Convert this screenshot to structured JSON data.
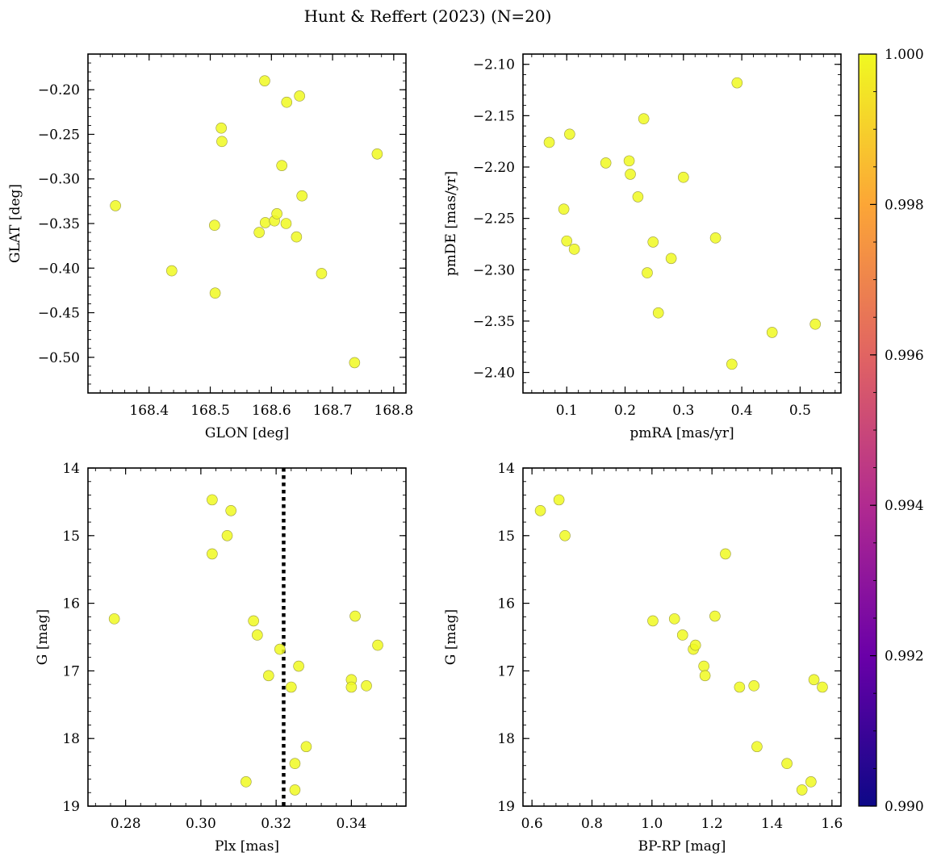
{
  "figure": {
    "title": "Hunt & Reffert (2023) (N=20)"
  },
  "colors": {
    "point": "#f0f921",
    "point_edge": "#9a9a40",
    "colorbar_stops": [
      "#0d0887",
      "#6a00a8",
      "#b12a90",
      "#e16462",
      "#fca636",
      "#f0f921"
    ]
  },
  "colorbar": {
    "min": 0.99,
    "max": 1.0,
    "ticks": [
      0.99,
      0.992,
      0.994,
      0.996,
      0.998,
      1.0
    ],
    "tick_labels": [
      "0.990",
      "0.992",
      "0.994",
      "0.996",
      "0.998",
      "1.000"
    ]
  },
  "chart_data": [
    {
      "type": "scatter",
      "id": "glon-glat",
      "title": "",
      "xlabel": "GLON [deg]",
      "ylabel": "GLAT [deg]",
      "xlim": [
        168.3,
        168.82
      ],
      "ylim": [
        -0.54,
        -0.16
      ],
      "y_inverted": false,
      "xticks": [
        168.4,
        168.5,
        168.6,
        168.7,
        168.8
      ],
      "xtick_labels": [
        "168.4",
        "168.5",
        "168.6",
        "168.7",
        "168.8"
      ],
      "xminor": 0.02,
      "yticks": [
        -0.5,
        -0.45,
        -0.4,
        -0.35,
        -0.3,
        -0.25,
        -0.2
      ],
      "ytick_labels": [
        "−0.50",
        "−0.45",
        "−0.40",
        "−0.35",
        "−0.30",
        "−0.25",
        "−0.20"
      ],
      "yminor": 0.01,
      "x": [
        168.345,
        168.437,
        168.507,
        168.508,
        168.518,
        168.519,
        168.58,
        168.59,
        168.589,
        168.605,
        168.609,
        168.617,
        168.624,
        168.625,
        168.641,
        168.646,
        168.65,
        168.682,
        168.736,
        168.773
      ],
      "y": [
        -0.33,
        -0.403,
        -0.352,
        -0.428,
        -0.243,
        -0.258,
        -0.36,
        -0.349,
        -0.19,
        -0.347,
        -0.339,
        -0.285,
        -0.35,
        -0.214,
        -0.365,
        -0.207,
        -0.319,
        -0.406,
        -0.506,
        -0.272
      ]
    },
    {
      "type": "scatter",
      "id": "pmra-pmde",
      "title": "",
      "xlabel": "pmRA [mas/yr]",
      "ylabel": "pmDE [mas/yr]",
      "xlim": [
        0.025,
        0.57
      ],
      "ylim": [
        -2.42,
        -2.09
      ],
      "y_inverted": false,
      "xticks": [
        0.1,
        0.2,
        0.3,
        0.4,
        0.5
      ],
      "xtick_labels": [
        "0.1",
        "0.2",
        "0.3",
        "0.4",
        "0.5"
      ],
      "xminor": 0.02,
      "yticks": [
        -2.4,
        -2.35,
        -2.3,
        -2.25,
        -2.2,
        -2.15,
        -2.1
      ],
      "ytick_labels": [
        "−2.40",
        "−2.35",
        "−2.30",
        "−2.25",
        "−2.20",
        "−2.15",
        "−2.10"
      ],
      "yminor": 0.01,
      "x": [
        0.07,
        0.095,
        0.1,
        0.105,
        0.113,
        0.167,
        0.207,
        0.209,
        0.222,
        0.232,
        0.238,
        0.248,
        0.257,
        0.279,
        0.3,
        0.355,
        0.383,
        0.392,
        0.452,
        0.526
      ],
      "y": [
        -2.176,
        -2.241,
        -2.272,
        -2.168,
        -2.28,
        -2.196,
        -2.194,
        -2.207,
        -2.229,
        -2.153,
        -2.303,
        -2.273,
        -2.342,
        -2.289,
        -2.21,
        -2.269,
        -2.392,
        -2.118,
        -2.361,
        -2.353
      ]
    },
    {
      "type": "scatter",
      "id": "plx-g",
      "title": "",
      "xlabel": "Plx [mas]",
      "ylabel": "G [mag]",
      "xlim": [
        0.27,
        0.3545
      ],
      "ylim": [
        19.0,
        14.0
      ],
      "y_inverted": true,
      "xticks": [
        0.28,
        0.3,
        0.32,
        0.34
      ],
      "xtick_labels": [
        "0.28",
        "0.30",
        "0.32",
        "0.34"
      ],
      "xminor": 0.004,
      "yticks": [
        14,
        15,
        16,
        17,
        18,
        19
      ],
      "ytick_labels": [
        "14",
        "15",
        "16",
        "17",
        "18",
        "19"
      ],
      "yminor": 0.2,
      "vline": 0.322,
      "x": [
        0.277,
        0.303,
        0.303,
        0.307,
        0.308,
        0.312,
        0.314,
        0.315,
        0.318,
        0.321,
        0.324,
        0.325,
        0.325,
        0.326,
        0.328,
        0.34,
        0.34,
        0.341,
        0.344,
        0.347
      ],
      "y": [
        16.23,
        14.47,
        15.27,
        15.0,
        14.63,
        18.64,
        16.26,
        16.47,
        17.07,
        16.68,
        17.24,
        18.37,
        18.76,
        16.93,
        18.12,
        17.13,
        17.24,
        16.19,
        17.22,
        16.62
      ]
    },
    {
      "type": "scatter",
      "id": "bprp-g",
      "title": "",
      "xlabel": "BP-RP [mag]",
      "ylabel": "G [mag]",
      "xlim": [
        0.57,
        1.63
      ],
      "ylim": [
        19.0,
        14.0
      ],
      "y_inverted": true,
      "xticks": [
        0.6,
        0.8,
        1.0,
        1.2,
        1.4,
        1.6
      ],
      "xtick_labels": [
        "0.6",
        "0.8",
        "1.0",
        "1.2",
        "1.4",
        "1.6"
      ],
      "xminor": 0.04,
      "yticks": [
        14,
        15,
        16,
        17,
        18,
        19
      ],
      "ytick_labels": [
        "14",
        "15",
        "16",
        "17",
        "18",
        "19"
      ],
      "yminor": 0.2,
      "x": [
        0.628,
        0.69,
        0.71,
        1.003,
        1.075,
        1.102,
        1.138,
        1.145,
        1.173,
        1.177,
        1.21,
        1.245,
        1.292,
        1.34,
        1.35,
        1.45,
        1.5,
        1.53,
        1.54,
        1.568
      ],
      "y": [
        14.63,
        14.47,
        15.0,
        16.26,
        16.23,
        16.47,
        16.68,
        16.62,
        16.93,
        17.07,
        16.19,
        15.27,
        17.24,
        17.22,
        18.12,
        18.37,
        18.76,
        18.64,
        17.13,
        17.24
      ]
    }
  ]
}
